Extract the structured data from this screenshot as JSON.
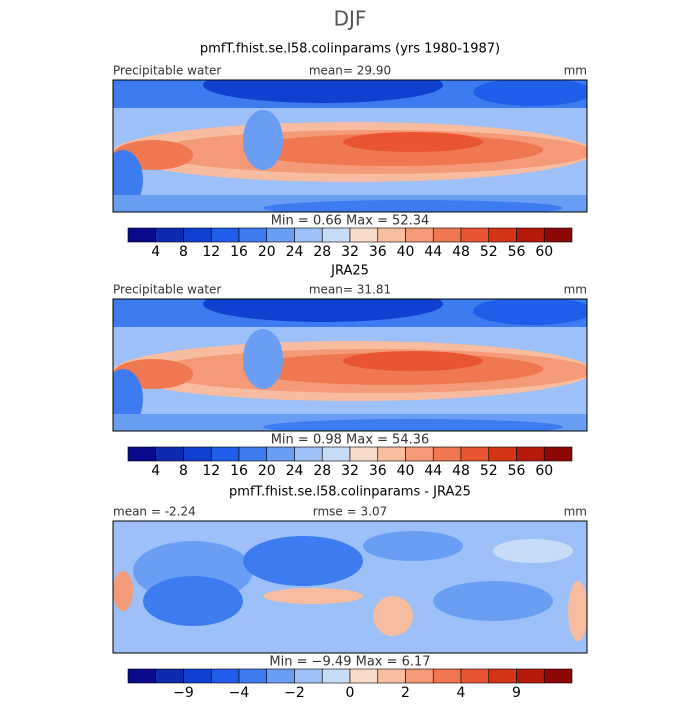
{
  "title": "DJF",
  "colors": [
    "#0a0a8c",
    "#0d2ab0",
    "#1040d0",
    "#1f5ee8",
    "#3c7cf0",
    "#6a9ef5",
    "#9cc0f7",
    "#c8dcf8",
    "#f8dcc8",
    "#f8bca0",
    "#f59a78",
    "#f07850",
    "#e85530",
    "#d53415",
    "#b31a0a",
    "#8c0808"
  ],
  "panels": [
    {
      "title": "pmfT.fhist.se.l58.colinparams (yrs 1980-1987)",
      "left_label": "Precipitable water",
      "center_label": "mean=   29.90",
      "right_label": "mm",
      "min_max": "Min =    0.66 Max =   52.34",
      "colorbar_labels": [
        "4",
        "8",
        "12",
        "16",
        "20",
        "24",
        "28",
        "32",
        "36",
        "40",
        "44",
        "48",
        "52",
        "56",
        "60"
      ]
    },
    {
      "title": "JRA25",
      "left_label": "Precipitable water",
      "center_label": "mean=   31.81",
      "right_label": "mm",
      "min_max": "Min =    0.98 Max =   54.36",
      "colorbar_labels": [
        "4",
        "8",
        "12",
        "16",
        "20",
        "24",
        "28",
        "32",
        "36",
        "40",
        "44",
        "48",
        "52",
        "56",
        "60"
      ]
    },
    {
      "title": "pmfT.fhist.se.l58.colinparams - JRA25",
      "left_label": "mean =   -2.24",
      "center_label": "rmse =    3.07",
      "right_label": "mm",
      "min_max": "Min =   −9.49 Max =    6.17",
      "colorbar_labels": [
        "−9",
        "−4",
        "−2",
        "0",
        "2",
        "4",
        "9"
      ]
    }
  ]
}
